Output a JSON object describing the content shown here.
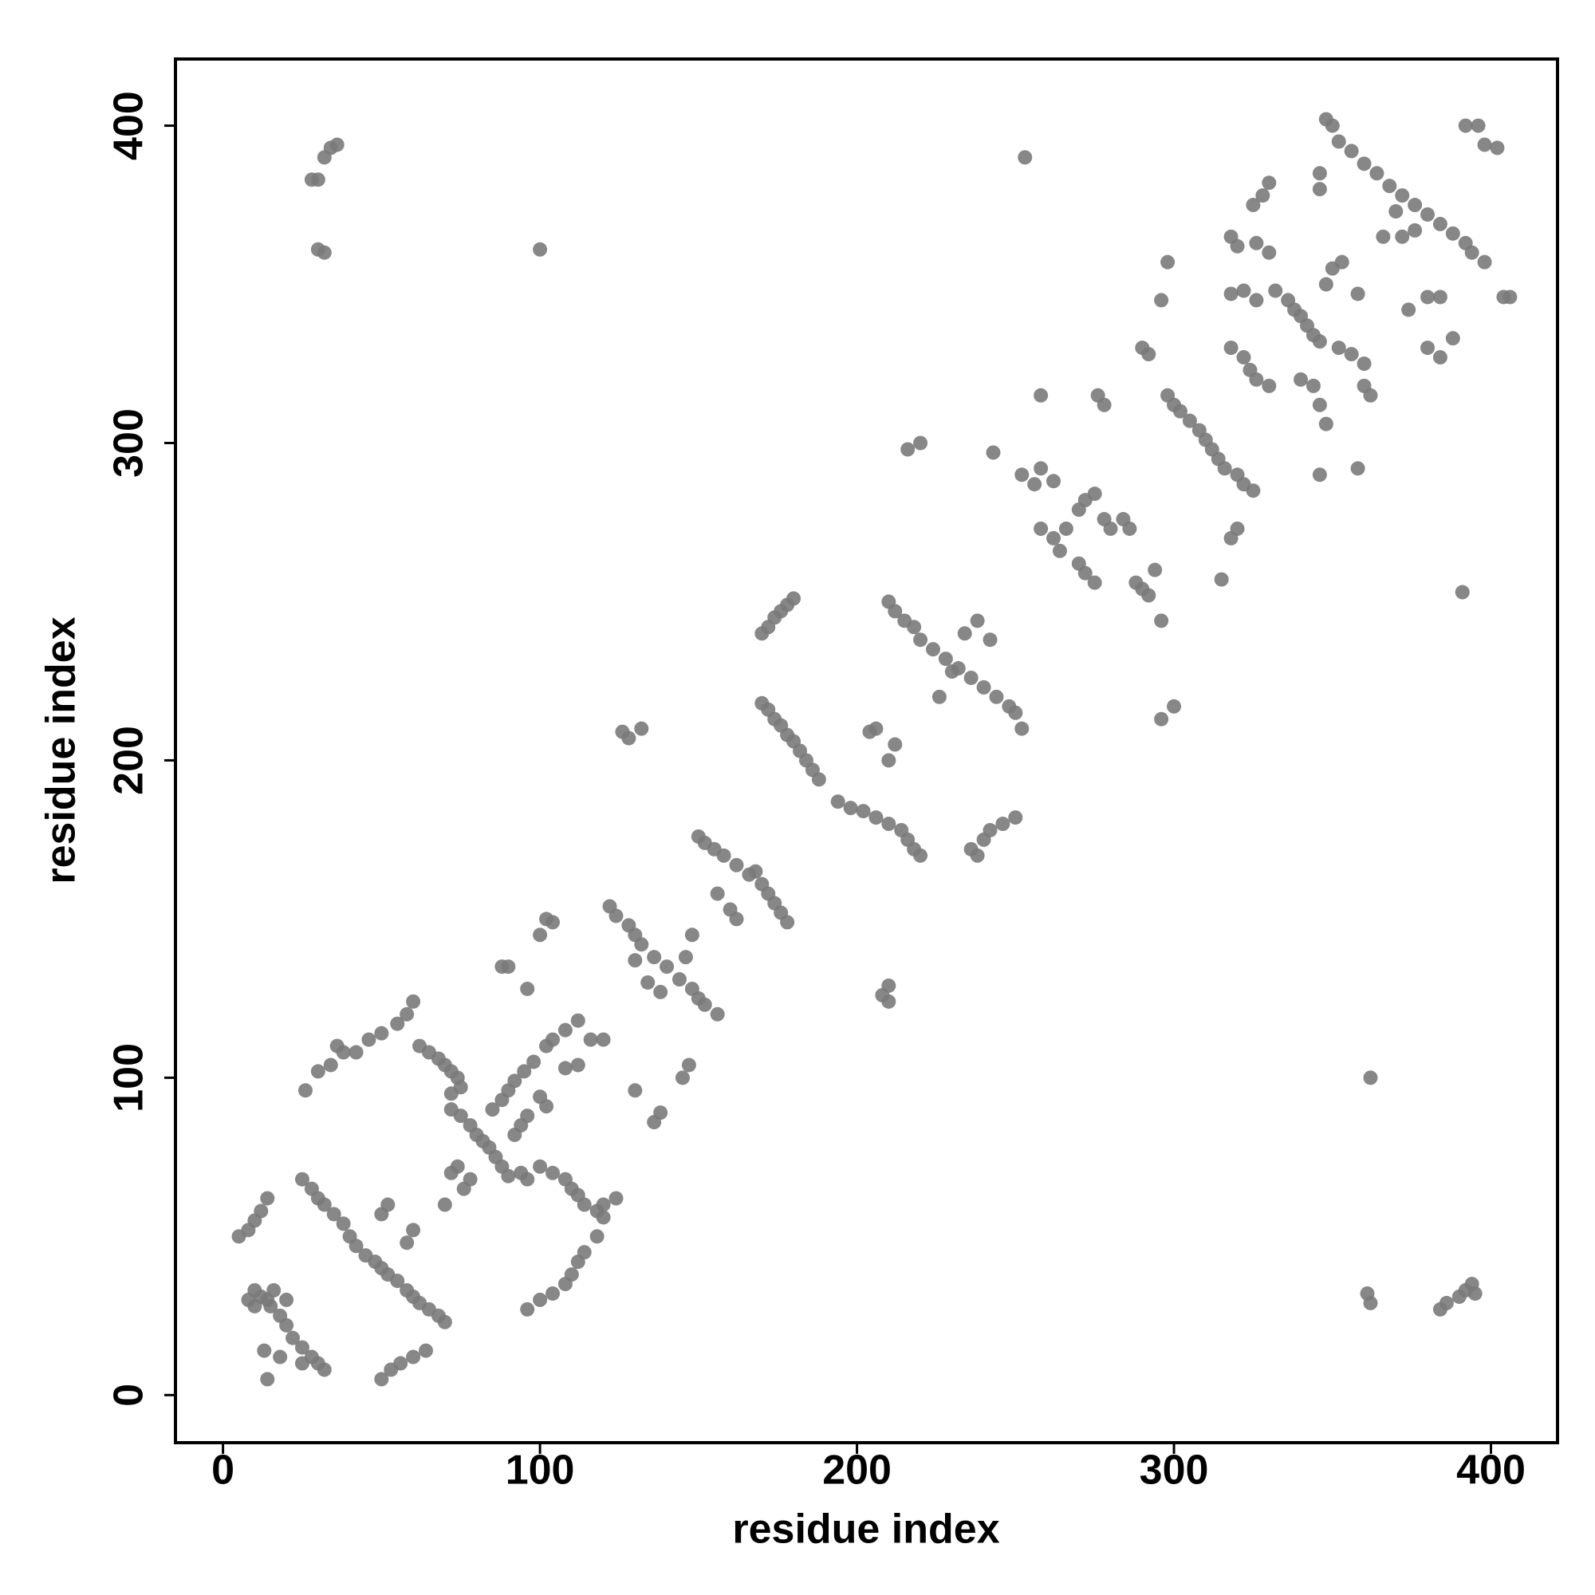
{
  "chart_data": {
    "type": "scatter",
    "xlabel": "residue index",
    "ylabel": "residue index",
    "xlim": [
      -15,
      421
    ],
    "ylim": [
      -15,
      421
    ],
    "xticks": [
      0,
      100,
      200,
      300,
      400
    ],
    "yticks": [
      0,
      100,
      200,
      300,
      400
    ],
    "color": "#7a7a7a",
    "x": [
      30,
      28,
      32,
      34,
      36,
      30,
      32,
      100,
      253,
      362,
      391,
      361,
      362,
      384,
      386,
      390,
      392,
      394,
      395,
      5,
      8,
      10,
      12,
      14,
      8,
      10,
      12,
      15,
      18,
      20,
      22,
      25,
      28,
      30,
      32,
      25,
      14,
      16,
      10,
      13,
      14,
      18,
      20,
      25,
      28,
      30,
      32,
      35,
      38,
      40,
      42,
      45,
      48,
      50,
      52,
      55,
      58,
      60,
      62,
      65,
      68,
      70,
      52,
      50,
      60,
      58,
      50,
      53,
      56,
      60,
      64,
      62,
      65,
      68,
      70,
      72,
      74,
      60,
      58,
      55,
      50,
      46,
      42,
      38,
      36,
      34,
      30,
      26,
      72,
      75,
      78,
      80,
      82,
      84,
      86,
      88,
      90,
      85,
      88,
      90,
      92,
      95,
      98,
      100,
      102,
      96,
      94,
      92,
      74,
      72,
      76,
      78,
      70,
      72,
      75,
      94,
      96,
      100,
      104,
      108,
      110,
      112,
      114,
      118,
      120,
      102,
      104,
      108,
      112,
      116,
      120,
      112,
      108,
      96,
      100,
      104,
      108,
      110,
      112,
      114,
      118,
      120,
      124,
      136,
      138,
      130,
      145,
      147,
      88,
      90,
      96,
      100,
      102,
      104,
      122,
      124,
      128,
      130,
      132,
      136,
      140,
      144,
      148,
      150,
      152,
      156,
      130,
      134,
      138,
      146,
      148,
      150,
      152,
      155,
      158,
      162,
      166,
      170,
      172,
      174,
      176,
      178,
      156,
      160,
      162,
      168,
      126,
      128,
      132,
      170,
      172,
      174,
      176,
      178,
      180,
      182,
      184,
      186,
      188,
      170,
      172,
      174,
      176,
      178,
      180,
      194,
      198,
      202,
      206,
      210,
      214,
      216,
      218,
      220,
      204,
      206,
      210,
      212,
      208,
      210,
      210,
      210,
      212,
      215,
      218,
      220,
      224,
      228,
      232,
      236,
      240,
      244,
      248,
      250,
      252,
      226,
      230,
      234,
      238,
      242,
      236,
      238,
      240,
      242,
      246,
      250,
      216,
      220,
      243,
      252,
      256,
      258,
      262,
      258,
      262,
      264,
      266,
      270,
      272,
      275,
      270,
      272,
      275,
      278,
      280,
      284,
      286,
      288,
      290,
      292,
      294,
      296,
      296,
      300,
      278,
      276,
      258,
      290,
      292,
      296,
      298,
      298,
      300,
      302,
      305,
      308,
      310,
      312,
      314,
      316,
      318,
      320,
      315,
      320,
      322,
      325,
      318,
      320,
      322,
      326,
      318,
      318,
      322,
      324,
      326,
      330,
      325,
      328,
      330,
      326,
      330,
      332,
      336,
      338,
      340,
      342,
      344,
      346,
      340,
      344,
      346,
      348,
      346,
      348,
      350,
      353,
      352,
      356,
      360,
      358,
      358,
      360,
      362,
      346,
      346,
      348,
      350,
      352,
      356,
      360,
      364,
      368,
      372,
      376,
      380,
      384,
      388,
      392,
      394,
      398,
      370,
      366,
      372,
      376,
      380,
      384,
      380,
      384,
      388,
      392,
      396,
      398,
      402,
      404,
      406,
      374
    ],
    "values": [
      383,
      383,
      390,
      393,
      394,
      361,
      360,
      361,
      390,
      100,
      253,
      32,
      29,
      27,
      29,
      31,
      33,
      35,
      32,
      50,
      52,
      55,
      58,
      62,
      30,
      33,
      31,
      28,
      25,
      22,
      18,
      15,
      12,
      10,
      8,
      10,
      30,
      33,
      28,
      14,
      5,
      12,
      30,
      68,
      65,
      62,
      60,
      57,
      54,
      50,
      47,
      44,
      42,
      40,
      38,
      36,
      33,
      31,
      29,
      27,
      25,
      23,
      60,
      57,
      52,
      48,
      5,
      8,
      10,
      12,
      14,
      110,
      108,
      106,
      104,
      102,
      100,
      124,
      120,
      117,
      114,
      112,
      108,
      108,
      110,
      104,
      102,
      96,
      90,
      88,
      85,
      82,
      80,
      78,
      75,
      72,
      69,
      90,
      93,
      96,
      99,
      102,
      105,
      94,
      91,
      88,
      85,
      82,
      72,
      70,
      65,
      68,
      60,
      95,
      97,
      70,
      68,
      72,
      70,
      68,
      65,
      63,
      60,
      58,
      60,
      110,
      112,
      115,
      118,
      112,
      112,
      104,
      103,
      27,
      30,
      32,
      35,
      38,
      42,
      45,
      50,
      56,
      62,
      86,
      89,
      96,
      100,
      104,
      135,
      135,
      128,
      145,
      150,
      149,
      154,
      151,
      148,
      145,
      142,
      138,
      135,
      131,
      128,
      125,
      123,
      120,
      137,
      130,
      127,
      138,
      145,
      176,
      174,
      172,
      170,
      167,
      164,
      161,
      158,
      155,
      152,
      149,
      158,
      153,
      150,
      165,
      209,
      207,
      210,
      218,
      216,
      213,
      211,
      208,
      206,
      203,
      200,
      197,
      194,
      240,
      242,
      245,
      247,
      249,
      251,
      187,
      185,
      184,
      182,
      180,
      178,
      175,
      172,
      170,
      209,
      210,
      200,
      205,
      126,
      124,
      129,
      250,
      247,
      244,
      242,
      238,
      235,
      232,
      229,
      226,
      223,
      220,
      217,
      215,
      210,
      220,
      228,
      240,
      244,
      238,
      172,
      170,
      175,
      178,
      180,
      182,
      298,
      300,
      297,
      290,
      287,
      292,
      288,
      273,
      270,
      266,
      273,
      262,
      259,
      256,
      279,
      282,
      284,
      276,
      273,
      276,
      273,
      256,
      254,
      252,
      260,
      244,
      213,
      217,
      312,
      315,
      315,
      330,
      328,
      345,
      357,
      315,
      312,
      310,
      307,
      304,
      301,
      298,
      295,
      292,
      270,
      273,
      257,
      290,
      287,
      285,
      365,
      362,
      348,
      345,
      347,
      330,
      327,
      323,
      320,
      318,
      375,
      378,
      382,
      363,
      360,
      348,
      345,
      342,
      340,
      337,
      334,
      332,
      320,
      318,
      312,
      306,
      290,
      350,
      355,
      357,
      330,
      328,
      325,
      292,
      347,
      318,
      315,
      385,
      380,
      402,
      400,
      395,
      392,
      388,
      385,
      381,
      378,
      375,
      372,
      369,
      366,
      363,
      360,
      357,
      373,
      365,
      365,
      367,
      346,
      346,
      330,
      327,
      333,
      400,
      400,
      394,
      393,
      346,
      346,
      342
    ]
  }
}
